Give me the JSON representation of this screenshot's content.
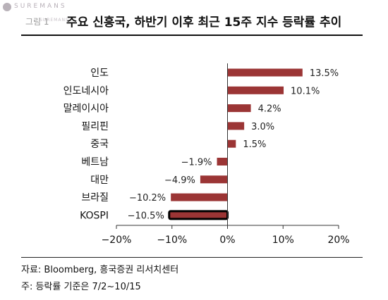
{
  "header": {
    "watermark_text": "SUREMANS",
    "watermark_sub": "SUREMANS",
    "figure_label": "그림 1",
    "title": "주요 신흥국, 하반기 이후 최근 15주 지수 등락률 추이"
  },
  "chart_data": {
    "type": "bar",
    "orientation": "horizontal",
    "categories": [
      "인도",
      "인도네시아",
      "말레이시아",
      "필리핀",
      "중국",
      "베트남",
      "대만",
      "브라질",
      "KOSPI"
    ],
    "values": [
      13.5,
      10.1,
      4.2,
      3.0,
      1.5,
      -1.9,
      -4.9,
      -10.2,
      -10.5
    ],
    "value_labels": [
      "13.5%",
      "10.1%",
      "4.2%",
      "3.0%",
      "1.5%",
      "−1.9%",
      "−4.9%",
      "−10.2%",
      "−10.5%"
    ],
    "highlight_category": "KOSPI",
    "xlim": [
      -20,
      20
    ],
    "xticks": [
      -20,
      -10,
      0,
      10,
      20
    ],
    "xtick_labels": [
      "−20%",
      "−10%",
      "0%",
      "10%",
      "20%"
    ],
    "bar_color": "#9b3535",
    "highlight_color": "#000000",
    "grid": false
  },
  "footer": {
    "source": "자료: Bloomberg, 흥국증권 리서치센터",
    "note": "주: 등락률 기준은 7/2~10/15"
  }
}
